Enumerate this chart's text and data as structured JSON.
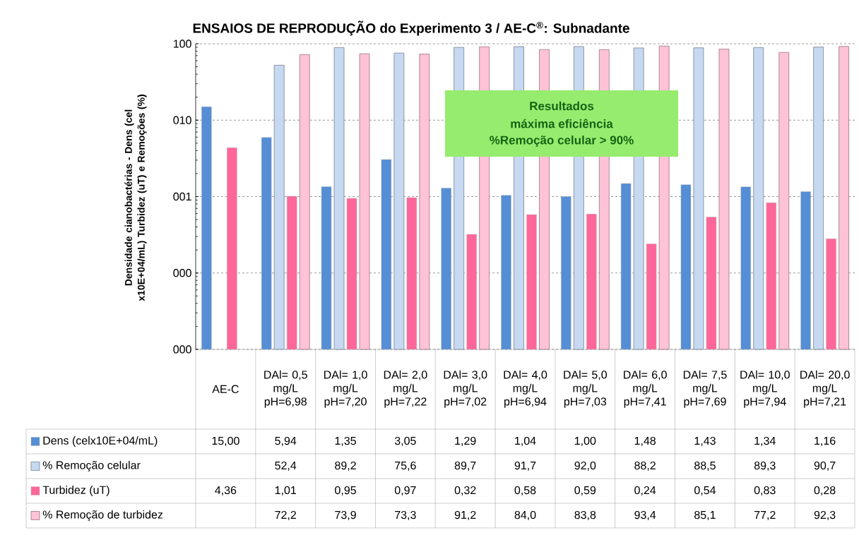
{
  "chart_data": {
    "type": "bar",
    "title": "ENSAIOS DE REPRODUÇÃO do Experimento 3 / AE-C$^{®}$: Subnadante",
    "ylabel": "Densidade cianobactérias - Dens (cel x10E+04/mL) Turbidez (uT) e Remoções (%)",
    "categories": [
      "AE-C",
      "DAl= 0,5 mg/L pH=6,98",
      "DAl= 1,0 mg/L pH=7,20",
      "DAl= 2,0 mg/L pH=7,22",
      "DAl= 3,0 mg/L pH=7,02",
      "DAl= 4,0 mg/L pH=6,94",
      "DAl= 5,0 mg/L pH=7,03",
      "DAl= 6,0 mg/L pH=7,41",
      "DAl= 7,5 mg/L pH=7,69",
      "DAl= 10,0 mg/L pH=7,94",
      "DAl= 20,0 mg/L pH=7,21"
    ],
    "series": [
      {
        "name": "Dens (celx10E+04/mL)",
        "color": "#558ed5",
        "values": [
          15.0,
          5.94,
          1.35,
          3.05,
          1.29,
          1.04,
          1.0,
          1.48,
          1.43,
          1.34,
          1.16
        ],
        "value_labels": [
          "15,00",
          "5,94",
          "1,35",
          "3,05",
          "1,29",
          "1,04",
          "1,00",
          "1,48",
          "1,43",
          "1,34",
          "1,16"
        ]
      },
      {
        "name": "% Remoção celular",
        "color": "#c6d9f1",
        "values": [
          null,
          52.4,
          89.2,
          75.6,
          89.7,
          91.7,
          92.0,
          88.2,
          88.5,
          89.3,
          90.7
        ],
        "value_labels": [
          null,
          "52,4",
          "89,2",
          "75,6",
          "89,7",
          "91,7",
          "92,0",
          "88,2",
          "88,5",
          "89,3",
          "90,7"
        ]
      },
      {
        "name": "Turbidez (uT)",
        "color": "#ff6699",
        "values": [
          4.36,
          1.01,
          0.95,
          0.97,
          0.32,
          0.58,
          0.59,
          0.24,
          0.54,
          0.83,
          0.28
        ],
        "value_labels": [
          "4,36",
          "1,01",
          "0,95",
          "0,97",
          "0,32",
          "0,58",
          "0,59",
          "0,24",
          "0,54",
          "0,83",
          "0,28"
        ]
      },
      {
        "name": "% Remoção de turbidez",
        "color": "#ffc2d6",
        "values": [
          null,
          72.2,
          73.9,
          73.3,
          91.2,
          84.0,
          83.8,
          93.4,
          85.1,
          77.2,
          92.3
        ],
        "value_labels": [
          null,
          "72,2",
          "73,9",
          "73,3",
          "91,2",
          "84,0",
          "83,8",
          "93,4",
          "85,1",
          "77,2",
          "92,3"
        ]
      }
    ],
    "log": true,
    "ylim": [
      0.01,
      100
    ],
    "yticks": [
      {
        "value": 0.01,
        "label": "000"
      },
      {
        "value": 0.1,
        "label": "000"
      },
      {
        "value": 1,
        "label": "001"
      },
      {
        "value": 10,
        "label": "010"
      },
      {
        "value": 100,
        "label": "100"
      }
    ],
    "grid": "y",
    "legend": "bottom",
    "annotations": [
      "Resultados",
      "máxima eficiência",
      "%Remoção celular > 90%"
    ]
  }
}
